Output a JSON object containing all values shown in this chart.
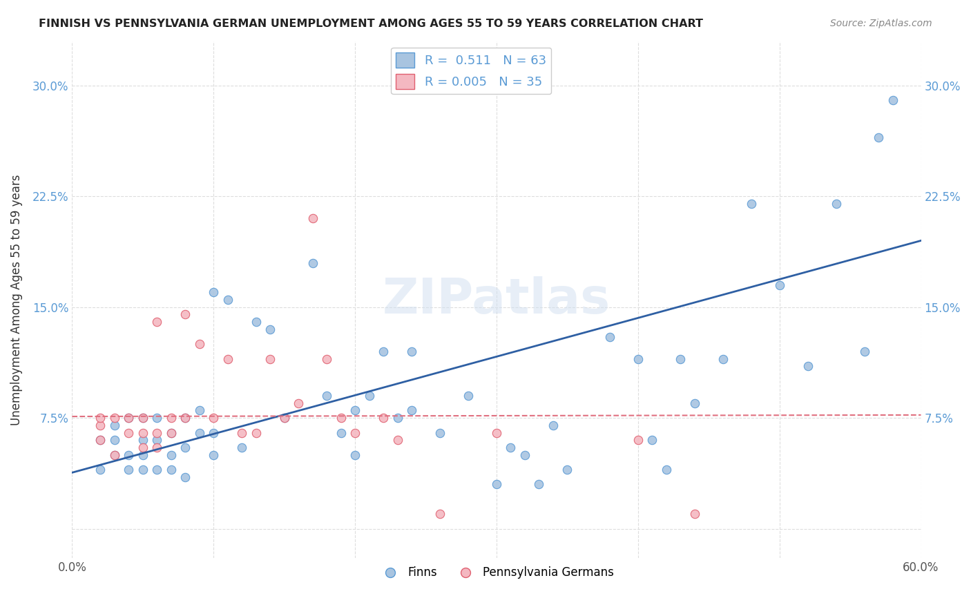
{
  "title": "FINNISH VS PENNSYLVANIA GERMAN UNEMPLOYMENT AMONG AGES 55 TO 59 YEARS CORRELATION CHART",
  "source": "Source: ZipAtlas.com",
  "xlabel": "",
  "ylabel": "Unemployment Among Ages 55 to 59 years",
  "xlim": [
    0.0,
    0.6
  ],
  "ylim": [
    -0.02,
    0.33
  ],
  "xticks": [
    0.0,
    0.1,
    0.2,
    0.3,
    0.4,
    0.5,
    0.6
  ],
  "xticklabels": [
    "0.0%",
    "",
    "",
    "",
    "",
    "",
    "60.0%"
  ],
  "yticks": [
    0.0,
    0.075,
    0.15,
    0.225,
    0.3
  ],
  "yticklabels": [
    "",
    "7.5%",
    "15.0%",
    "22.5%",
    "30.0%"
  ],
  "grid_color": "#dddddd",
  "background_color": "#ffffff",
  "finn_color": "#a8c4e0",
  "finn_edge_color": "#5b9bd5",
  "penn_color": "#f4b8c1",
  "penn_edge_color": "#e06070",
  "finn_line_color": "#2e5fa3",
  "penn_line_color": "#e07080",
  "watermark": "ZIPatlas",
  "legend_r1": "R =  0.511   N = 63",
  "legend_r2": "R = 0.005   N = 35",
  "finns_x": [
    0.02,
    0.02,
    0.03,
    0.03,
    0.03,
    0.04,
    0.04,
    0.04,
    0.05,
    0.05,
    0.05,
    0.05,
    0.06,
    0.06,
    0.06,
    0.07,
    0.07,
    0.07,
    0.08,
    0.08,
    0.08,
    0.09,
    0.09,
    0.1,
    0.1,
    0.1,
    0.11,
    0.12,
    0.13,
    0.14,
    0.15,
    0.17,
    0.18,
    0.19,
    0.2,
    0.2,
    0.21,
    0.22,
    0.23,
    0.24,
    0.24,
    0.26,
    0.28,
    0.3,
    0.31,
    0.32,
    0.33,
    0.34,
    0.35,
    0.38,
    0.4,
    0.41,
    0.42,
    0.43,
    0.44,
    0.46,
    0.48,
    0.5,
    0.52,
    0.54,
    0.56,
    0.57,
    0.58
  ],
  "finns_y": [
    0.04,
    0.06,
    0.05,
    0.06,
    0.07,
    0.04,
    0.05,
    0.075,
    0.04,
    0.05,
    0.06,
    0.075,
    0.04,
    0.06,
    0.075,
    0.04,
    0.05,
    0.065,
    0.035,
    0.055,
    0.075,
    0.065,
    0.08,
    0.05,
    0.065,
    0.16,
    0.155,
    0.055,
    0.14,
    0.135,
    0.075,
    0.18,
    0.09,
    0.065,
    0.05,
    0.08,
    0.09,
    0.12,
    0.075,
    0.08,
    0.12,
    0.065,
    0.09,
    0.03,
    0.055,
    0.05,
    0.03,
    0.07,
    0.04,
    0.13,
    0.115,
    0.06,
    0.04,
    0.115,
    0.085,
    0.115,
    0.22,
    0.165,
    0.11,
    0.22,
    0.12,
    0.265,
    0.29
  ],
  "penn_x": [
    0.02,
    0.02,
    0.02,
    0.03,
    0.03,
    0.04,
    0.04,
    0.05,
    0.05,
    0.05,
    0.06,
    0.06,
    0.06,
    0.07,
    0.07,
    0.08,
    0.08,
    0.09,
    0.1,
    0.11,
    0.12,
    0.13,
    0.14,
    0.15,
    0.16,
    0.17,
    0.18,
    0.19,
    0.2,
    0.22,
    0.23,
    0.26,
    0.3,
    0.4,
    0.44
  ],
  "penn_y": [
    0.06,
    0.07,
    0.075,
    0.05,
    0.075,
    0.065,
    0.075,
    0.055,
    0.065,
    0.075,
    0.055,
    0.065,
    0.14,
    0.065,
    0.075,
    0.075,
    0.145,
    0.125,
    0.075,
    0.115,
    0.065,
    0.065,
    0.115,
    0.075,
    0.085,
    0.21,
    0.115,
    0.075,
    0.065,
    0.075,
    0.06,
    0.01,
    0.065,
    0.06,
    0.01
  ],
  "finn_trend": [
    0.0,
    0.6
  ],
  "finn_trend_y": [
    0.038,
    0.195
  ],
  "penn_trend": [
    0.0,
    0.6
  ],
  "penn_trend_y": [
    0.076,
    0.077
  ]
}
